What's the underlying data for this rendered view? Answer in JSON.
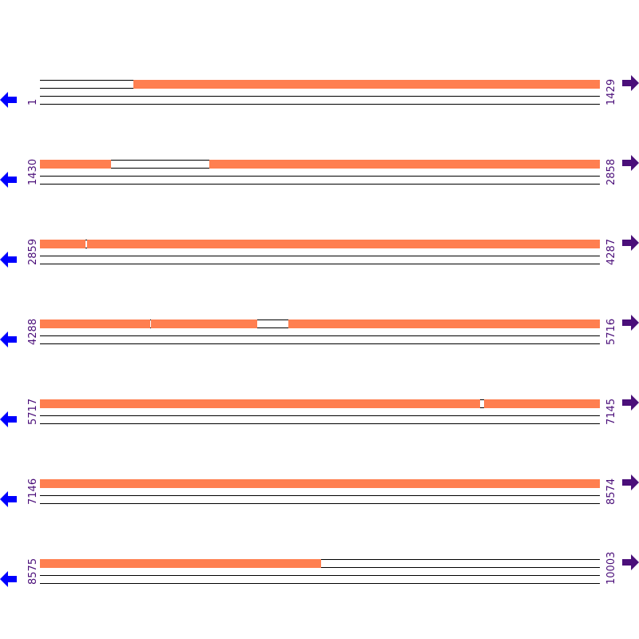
{
  "colors": {
    "covered": "#ff7f50",
    "uncovered": "#ffffff",
    "line": "#000000",
    "label": "#4b0f7a",
    "left_arrow": "#0000ff",
    "right_arrow": "#4b0f7a"
  },
  "icons": {
    "left": "arrow-left-icon",
    "right": "arrow-right-icon"
  },
  "rows": [
    {
      "start": "1",
      "end": "1429",
      "s": 1,
      "e": 1429,
      "covered": [
        [
          240,
          1429
        ]
      ]
    },
    {
      "start": "1430",
      "end": "2858",
      "s": 1430,
      "e": 2858,
      "covered": [
        [
          1430,
          1610
        ],
        [
          1862,
          2858
        ]
      ]
    },
    {
      "start": "2859",
      "end": "4287",
      "s": 2859,
      "e": 4287,
      "covered": [
        [
          2859,
          2975
        ],
        [
          2979,
          4287
        ]
      ]
    },
    {
      "start": "4288",
      "end": "5716",
      "s": 4288,
      "e": 5716,
      "covered": [
        [
          4288,
          4568
        ],
        [
          4572,
          4841
        ],
        [
          4922,
          5716
        ]
      ]
    },
    {
      "start": "5717",
      "end": "7145",
      "s": 5717,
      "e": 7145,
      "covered": [
        [
          5717,
          6839
        ],
        [
          6851,
          7145
        ]
      ]
    },
    {
      "start": "7146",
      "end": "8574",
      "s": 7146,
      "e": 8574,
      "covered": [
        [
          7146,
          8574
        ]
      ]
    },
    {
      "start": "8575",
      "end": "10003",
      "s": 8575,
      "e": 10003,
      "covered": [
        [
          8575,
          9291
        ]
      ]
    }
  ]
}
